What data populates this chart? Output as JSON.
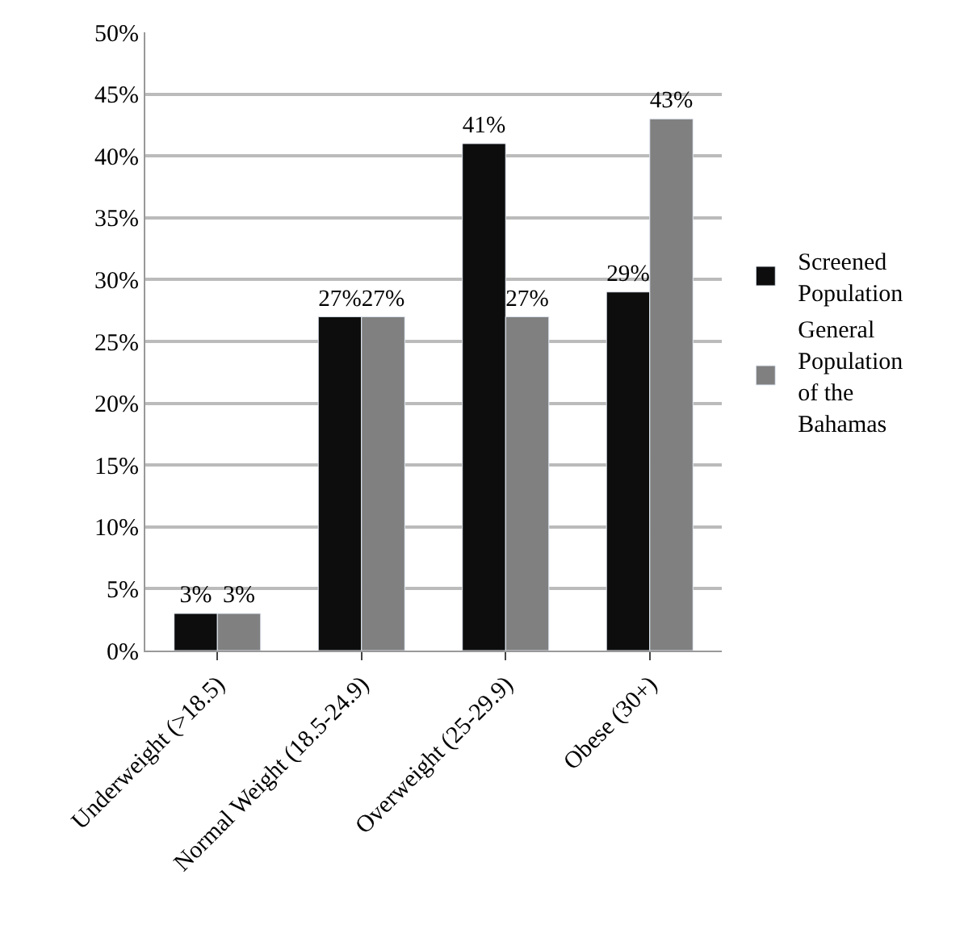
{
  "chart_data": {
    "type": "bar",
    "categories": [
      "Underweight (>18.5)",
      "Normal Weight (18.5-24.9)",
      "Overweight (25-29.9)",
      "Obese (30+)"
    ],
    "series": [
      {
        "name": "Screened Population",
        "color": "#0d0d0d",
        "values": [
          3,
          27,
          41,
          29
        ],
        "value_labels": [
          "3%",
          "27%",
          "41%",
          "29%"
        ]
      },
      {
        "name": "General Population of the Bahamas",
        "color": "#808080",
        "values": [
          3,
          27,
          27,
          43
        ],
        "value_labels": [
          "3%",
          "27%",
          "27%",
          "43%"
        ]
      }
    ],
    "ylim": [
      0,
      50
    ],
    "yticks": [
      {
        "value": 0,
        "label": "0%"
      },
      {
        "value": 5,
        "label": "5%"
      },
      {
        "value": 10,
        "label": "10%"
      },
      {
        "value": 15,
        "label": "15%"
      },
      {
        "value": 20,
        "label": "20%"
      },
      {
        "value": 25,
        "label": "25%"
      },
      {
        "value": 30,
        "label": "30%"
      },
      {
        "value": 35,
        "label": "35%"
      },
      {
        "value": 40,
        "label": "40%"
      },
      {
        "value": 45,
        "label": "45%"
      },
      {
        "value": 50,
        "label": "50%"
      }
    ],
    "grid": "y",
    "legend": "right"
  }
}
